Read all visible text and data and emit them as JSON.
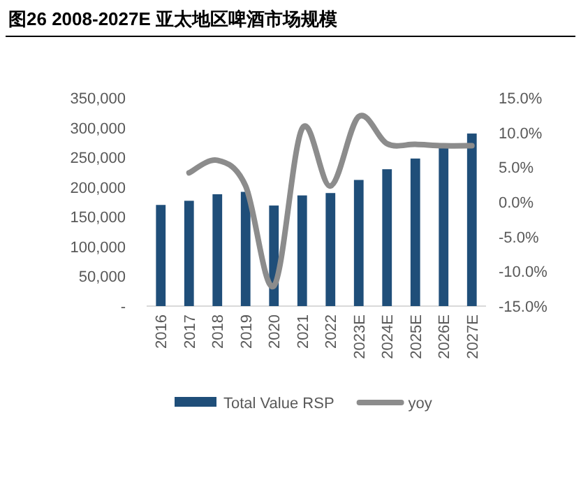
{
  "chart_data": {
    "type": "bar",
    "title": "图26 2008-2027E 亚太地区啤酒市场规模",
    "categories": [
      "2016",
      "2017",
      "2018",
      "2019",
      "2020",
      "2021",
      "2022",
      "2023E",
      "2024E",
      "2025E",
      "2026E",
      "2027E"
    ],
    "series": [
      {
        "name": "Total Value RSP",
        "color": "#1f4e79",
        "values": [
          170000,
          177000,
          188000,
          192000,
          169000,
          186000,
          190000,
          212000,
          230000,
          248000,
          268000,
          290000
        ]
      },
      {
        "name": "yoy",
        "type": "line",
        "axis": "y2",
        "color": "#8c8c8c",
        "values": [
          null,
          4.2,
          6.0,
          2.3,
          -12.1,
          10.6,
          2.3,
          12.3,
          8.4,
          8.3,
          8.1,
          8.1
        ]
      }
    ],
    "ylim": [
      0,
      350000
    ],
    "yticks": [
      {
        "value": 0,
        "label": "-"
      },
      {
        "value": 50000,
        "label": "50,000"
      },
      {
        "value": 100000,
        "label": "100,000"
      },
      {
        "value": 150000,
        "label": "150,000"
      },
      {
        "value": 200000,
        "label": "200,000"
      },
      {
        "value": 250000,
        "label": "250,000"
      },
      {
        "value": 300000,
        "label": "300,000"
      },
      {
        "value": 350000,
        "label": "350,000"
      }
    ],
    "y2lim": [
      -15,
      15
    ],
    "y2ticks": [
      {
        "value": -15,
        "label": "-15.0%"
      },
      {
        "value": -10,
        "label": "-10.0%"
      },
      {
        "value": -5,
        "label": "-5.0%"
      },
      {
        "value": 0,
        "label": "0.0%"
      },
      {
        "value": 5,
        "label": "5.0%"
      },
      {
        "value": 10,
        "label": "10.0%"
      },
      {
        "value": 15,
        "label": "15.0%"
      }
    ],
    "legend": "bottom"
  }
}
